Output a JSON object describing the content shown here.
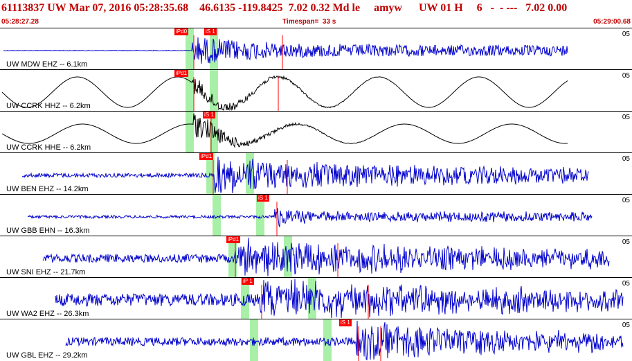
{
  "header": {
    "title": "61113837 UW Mar 07, 2016 05:28:35.68    46.6135 -119.8425  7.02 0.32 Md le     amyw      UW 01 H     6   -  - ---   7.02 0.00",
    "start_time": "05:28:27.28",
    "timespan": "Timespan=  33 s",
    "end_time": "05:29:00.68"
  },
  "colors": {
    "title": "#c00000",
    "trace_blue": "#0000cc",
    "trace_black": "#000000",
    "pick": "#ff0000",
    "window_band": "#a8f0a8"
  },
  "channels": [
    {
      "label": "UW MDW EHZ -- 6.1km",
      "scale": "05",
      "trace_color": "blue",
      "picks": [
        "iPd0",
        "iS 1"
      ]
    },
    {
      "label": "UW CCRK HHZ -- 6.2km",
      "scale": "05",
      "trace_color": "black",
      "picks": [
        "iPd1"
      ]
    },
    {
      "label": "UW CCRK HHE -- 6.2km",
      "scale": "05",
      "trace_color": "black",
      "picks": [
        "iS 1"
      ]
    },
    {
      "label": "UW BEN EHZ -- 14.2km",
      "scale": "05",
      "trace_color": "blue",
      "picks": [
        "iPd1"
      ]
    },
    {
      "label": "UW GBB EHN -- 16.3km",
      "scale": "05",
      "trace_color": "blue",
      "picks": [
        "iS 1"
      ]
    },
    {
      "label": "UW SNI EHZ -- 21.7km",
      "scale": "05",
      "trace_color": "blue",
      "picks": [
        "iPd1"
      ]
    },
    {
      "label": "UW WA2 EHZ -- 26.3km",
      "scale": "05",
      "trace_color": "blue",
      "picks": [
        "iP 1"
      ]
    },
    {
      "label": "UW GBL EHZ -- 29.2km",
      "scale": "05",
      "trace_color": "blue",
      "picks": [
        "iS 1"
      ]
    }
  ]
}
